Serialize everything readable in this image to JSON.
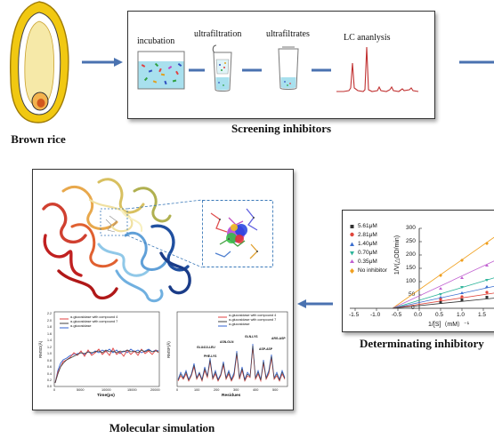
{
  "brown_rice": {
    "label": "Brown rice"
  },
  "screening": {
    "caption": "Screening inhibitors",
    "steps": [
      {
        "label": "incubation"
      },
      {
        "label": "ultrafiltration"
      },
      {
        "label": "ultrafiltrates"
      },
      {
        "label": "LC ananlysis"
      }
    ]
  },
  "kinetics": {
    "caption": "Determinating inhibitory",
    "legend": [
      "5.61μM",
      "2.81μM",
      "1.40μM",
      "0.70μM",
      "0.35μM",
      "No inhibitor"
    ],
    "series_colors": [
      "#333333",
      "#e0463c",
      "#3c6fd0",
      "#2fb59b",
      "#c060d0",
      "#f0a020"
    ],
    "ylabel": "1/V(△OD/min)",
    "xlabel": "1/[S]（mM）⁻¹",
    "yticks": [
      "300",
      "250",
      "200",
      "150",
      "100",
      "50",
      "0"
    ],
    "xticks": [
      "-1.5",
      "-1.0",
      "-0.5",
      "0.0",
      "0.5",
      "1.0",
      "1.5"
    ]
  },
  "simulation": {
    "caption": "Molecular simulation",
    "rmsd": {
      "ylabel": "RMSD(Å)",
      "xlabel": "Time(ps)",
      "yticks": [
        "2.2",
        "2.0",
        "1.8",
        "1.6",
        "1.4",
        "1.2",
        "1.0",
        "0.8",
        "0.6",
        "0.4",
        "0.2",
        "0.0"
      ],
      "xticks": [
        "0",
        "5000",
        "10000",
        "15000",
        "20000"
      ],
      "legend": [
        "α-glucosidase with compound 4",
        "α-glucosidase with compound 7",
        "α-glucosidase"
      ]
    },
    "rmsf": {
      "ylabel": "RMSF(Å)",
      "xlabel": "Residues",
      "xticks": [
        "0",
        "100",
        "200",
        "300",
        "400",
        "500"
      ],
      "legend": [
        "α-glucosidase with compound 4",
        "α-glucosidase with compound 7",
        "α-glucosidase"
      ],
      "annotations": [
        "GLU413-LEU",
        "PHE-LYS",
        "ASN-GLN",
        "GLN-LYS",
        "ASP-ASP",
        "ARG-ASP"
      ]
    }
  }
}
